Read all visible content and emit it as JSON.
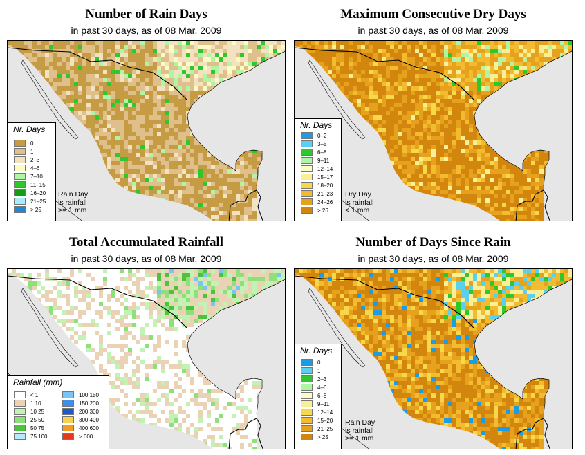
{
  "panels": [
    {
      "title": "Number of Rain Days",
      "subtitle": "in past 30 days, as of  08 Mar. 2009",
      "legend_title": "Nr. Days",
      "palette": [
        "#c59b43",
        "#dfc08b",
        "#f3e2c0",
        "#fbfbc5",
        "#aef5a6",
        "#2ec82c",
        "#139d13",
        "#a6ecfc",
        "#1e88d6"
      ],
      "legend": [
        {
          "label": "0",
          "color": "#c59b43"
        },
        {
          "label": "1",
          "color": "#dfc08b"
        },
        {
          "label": "2–3",
          "color": "#f3e2c0"
        },
        {
          "label": "4–6",
          "color": "#fbfbc5"
        },
        {
          "label": "7–10",
          "color": "#aef5a6"
        },
        {
          "label": "11–15",
          "color": "#2ec82c"
        },
        {
          "label": "16–20",
          "color": "#139d13"
        },
        {
          "label": "21–25",
          "color": "#a6ecfc"
        },
        {
          "label": "> 25",
          "color": "#1e88d6"
        }
      ],
      "note": [
        "Rain Day",
        "is rainfall",
        ">= 1 mm"
      ]
    },
    {
      "title": "Maximum Consecutive Dry Days",
      "subtitle": "in past 30 days, as of  08 Mar. 2009",
      "legend_title": "Nr. Days",
      "legend": [
        {
          "label": "0–2",
          "color": "#1e9be6"
        },
        {
          "label": "3–5",
          "color": "#5ad0f0"
        },
        {
          "label": "6–8",
          "color": "#2ec82c"
        },
        {
          "label": "9–11",
          "color": "#aef5a6"
        },
        {
          "label": "12–14",
          "color": "#fbfbc5"
        },
        {
          "label": "15–17",
          "color": "#f8ef96"
        },
        {
          "label": "18–20",
          "color": "#f7d84a"
        },
        {
          "label": "21–23",
          "color": "#f2bb30"
        },
        {
          "label": "24–26",
          "color": "#e6a21d"
        },
        {
          "label": "> 26",
          "color": "#d3860e"
        }
      ],
      "note": [
        "Dry Day",
        "is rainfall",
        "< 1 mm"
      ]
    },
    {
      "title": "Total Accumulated Rainfall",
      "subtitle": "in past 30 days, as of  08 Mar. 2009",
      "legend_title": "Rainfall (mm)",
      "legend_col1": [
        {
          "label": "< 1",
          "color": "#ffffff"
        },
        {
          "label": "1    10",
          "color": "#ead3b5"
        },
        {
          "label": "10    25",
          "color": "#c2f3b5"
        },
        {
          "label": "25    50",
          "color": "#8ee07a"
        },
        {
          "label": "50    75",
          "color": "#4cc23d"
        },
        {
          "label": "75  100",
          "color": "#b5ebfa"
        }
      ],
      "legend_col2": [
        {
          "label": "100  150",
          "color": "#78c4f5"
        },
        {
          "label": "150  200",
          "color": "#3f8fe8"
        },
        {
          "label": "200  300",
          "color": "#1d59cf"
        },
        {
          "label": "300  400",
          "color": "#f6d250"
        },
        {
          "label": "400  600",
          "color": "#f29b22"
        },
        {
          "label": "> 600",
          "color": "#e6381b"
        }
      ]
    },
    {
      "title": "Number of Days Since Rain",
      "subtitle": "in past 30 days, as of  08 Mar. 2009",
      "legend_title": "Nr. Days",
      "legend": [
        {
          "label": "0",
          "color": "#1e9be6"
        },
        {
          "label": "1",
          "color": "#5ad0f0"
        },
        {
          "label": "2–3",
          "color": "#2ec82c"
        },
        {
          "label": "4–6",
          "color": "#aef5a6"
        },
        {
          "label": "6–8",
          "color": "#fbfbc5"
        },
        {
          "label": "9–11",
          "color": "#f8ef96"
        },
        {
          "label": "12–14",
          "color": "#f7d84a"
        },
        {
          "label": "15–20",
          "color": "#f2bb30"
        },
        {
          "label": "21–25",
          "color": "#e6a21d"
        },
        {
          "label": "> 25",
          "color": "#d3860e"
        }
      ],
      "note": [
        "Rain Day",
        "is rainfall",
        ">= 1 mm"
      ]
    }
  ]
}
